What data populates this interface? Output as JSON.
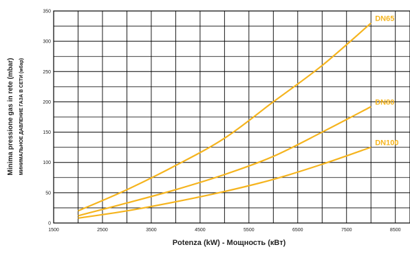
{
  "chart_data": {
    "type": "line",
    "xlabel": "Potenza (kW) -  Мощность  (кВт)",
    "ylabel": "Minima pressione gas in rete  (mbar)",
    "ylabel_secondary": "МИНИМАЛЬНОЕ ДАВЛЕНИЕ ГАЗА В СЕТИ (мбар)",
    "xlim": [
      1500,
      8800
    ],
    "ylim": [
      0,
      350
    ],
    "x_ticks": [
      1500,
      2500,
      3500,
      4500,
      5500,
      6500,
      7500,
      8500
    ],
    "y_ticks": [
      0,
      50,
      100,
      150,
      200,
      250,
      300,
      350
    ],
    "grid": true,
    "line_color": "#f5b41e",
    "series": [
      {
        "name": "DN65",
        "x": [
          2000,
          3000,
          4000,
          5000,
          6000,
          7000,
          8000
        ],
        "values": [
          20,
          55,
          95,
          140,
          200,
          260,
          330
        ]
      },
      {
        "name": "DN80",
        "x": [
          2000,
          3000,
          4000,
          5000,
          6000,
          7000,
          8000
        ],
        "values": [
          12,
          33,
          55,
          80,
          110,
          150,
          192
        ]
      },
      {
        "name": "DN100",
        "x": [
          2000,
          3000,
          4000,
          5000,
          6000,
          7000,
          8000
        ],
        "values": [
          8,
          20,
          35,
          52,
          72,
          97,
          125
        ]
      }
    ]
  }
}
